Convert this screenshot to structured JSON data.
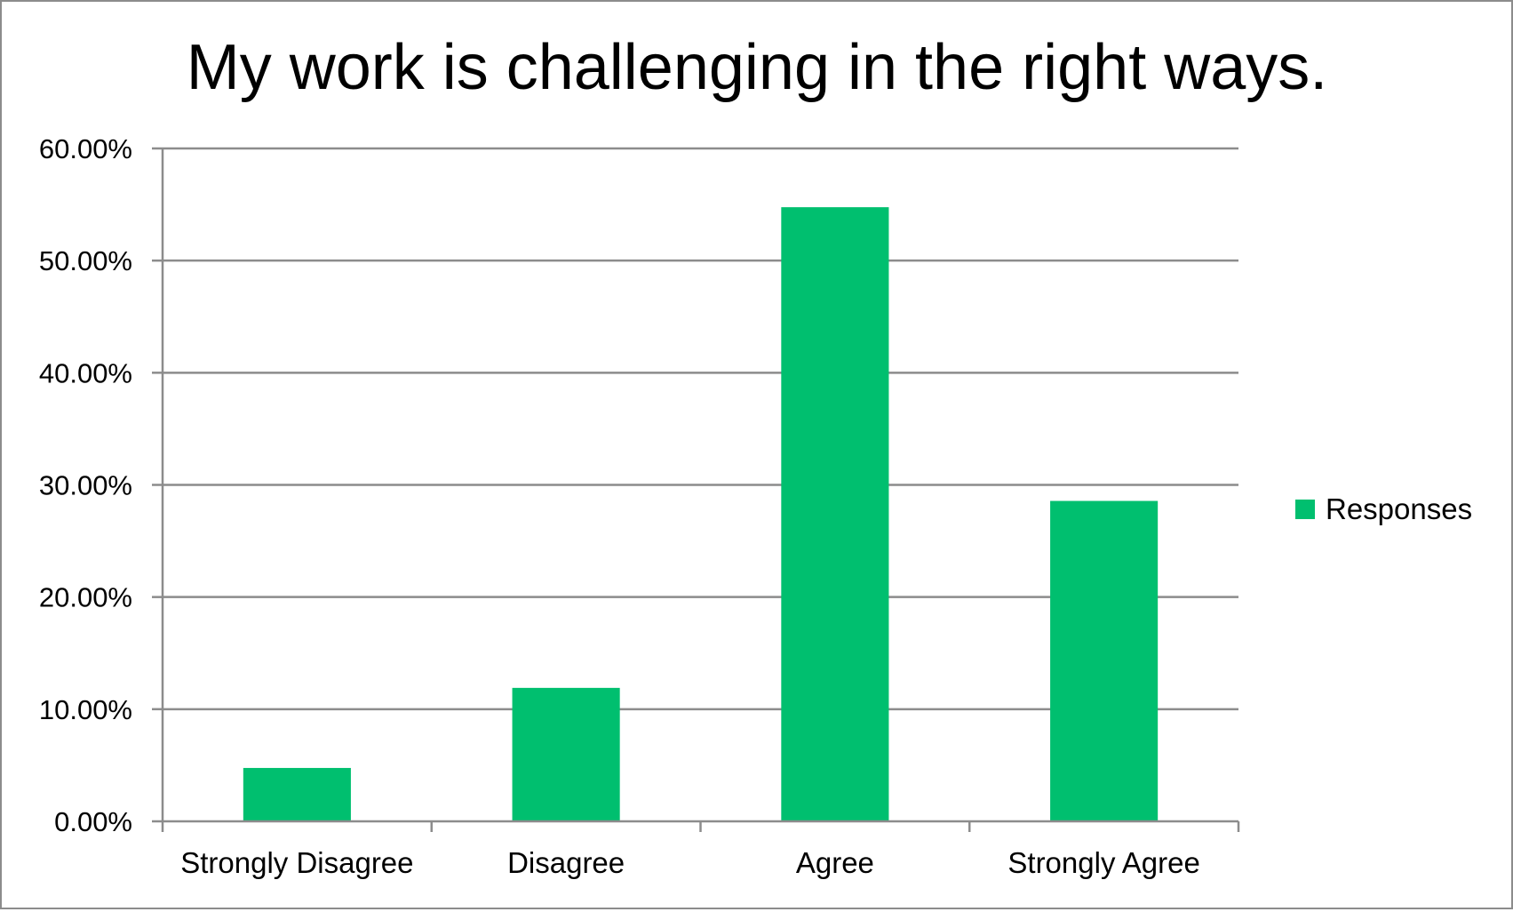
{
  "chart_data": {
    "type": "bar",
    "title": "My work is challenging in the right ways.",
    "categories": [
      "Strongly Disagree",
      "Disagree",
      "Agree",
      "Strongly Agree"
    ],
    "series": [
      {
        "name": "Responses",
        "values": [
          4.76,
          11.9,
          54.76,
          28.57
        ],
        "color": "#00bf6f"
      }
    ],
    "yticks": [
      "0.00%",
      "10.00%",
      "20.00%",
      "30.00%",
      "40.00%",
      "50.00%",
      "60.00%"
    ],
    "ylim": [
      0,
      60
    ],
    "xlabel": "",
    "ylabel": "",
    "grid": true,
    "legend": "right",
    "colors": {
      "gridline": "#8c8c8c",
      "axis": "#8c8c8c",
      "border": "#8c8c8c"
    }
  }
}
